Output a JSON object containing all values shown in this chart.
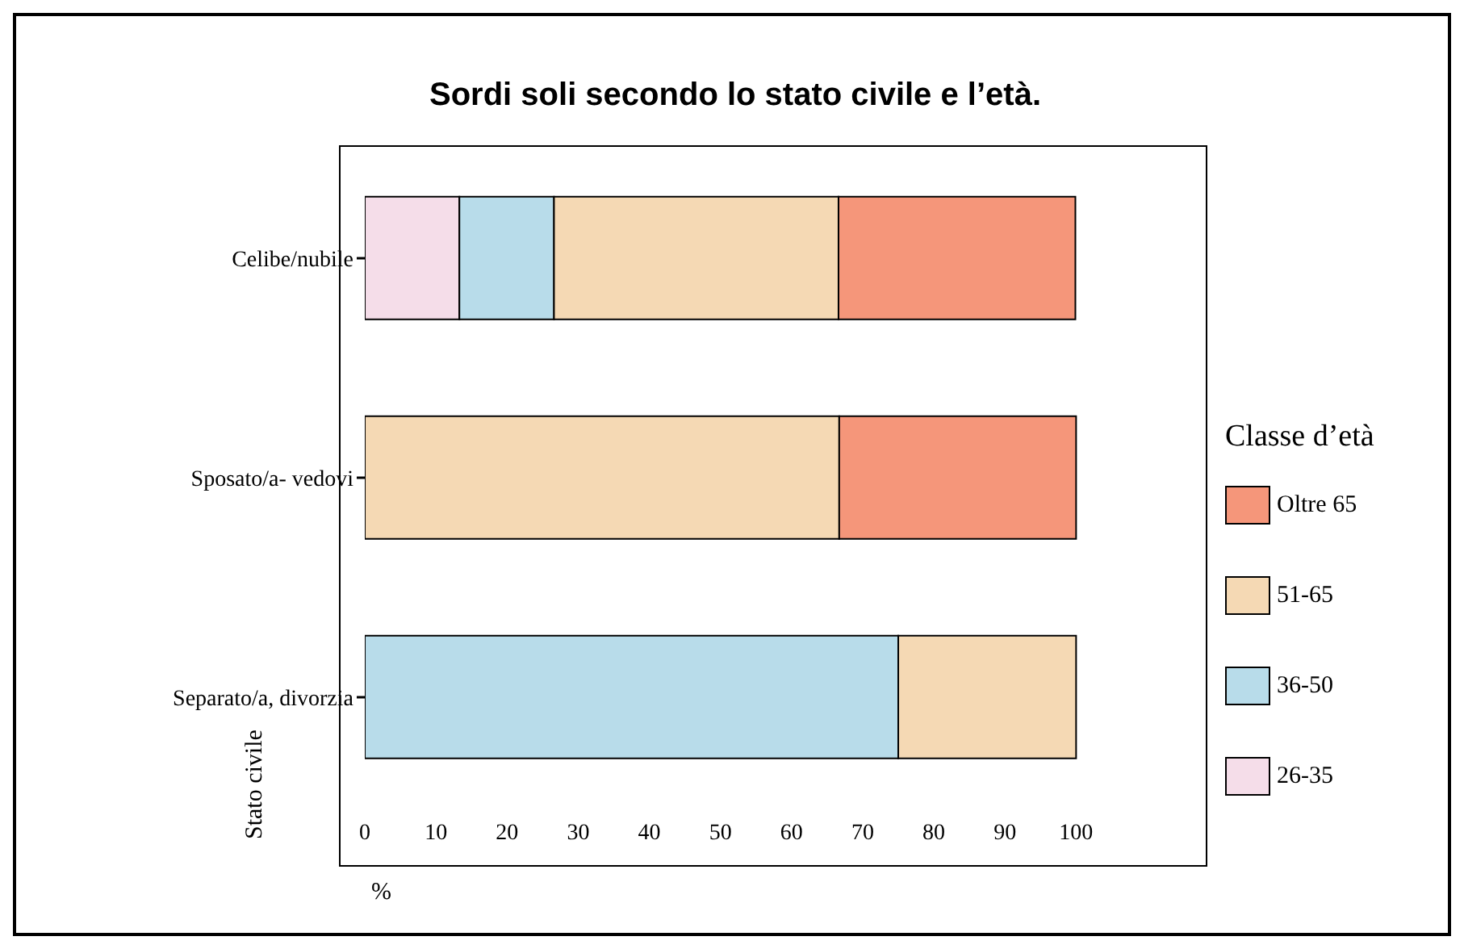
{
  "chart_data": {
    "type": "bar",
    "orientation": "horizontal",
    "stacked": true,
    "title": "Sordi soli secondo lo stato civile e l’età.",
    "xlabel": "%",
    "ylabel": "Stato civile",
    "legend_title": "Classe d’età",
    "legend": "right",
    "grid": false,
    "categories": [
      "Celibe/nubile",
      "Sposato/a- vedovi",
      "Separato/a, divorzia"
    ],
    "xlim": [
      0,
      118
    ],
    "xticks": [
      0,
      10,
      20,
      30,
      40,
      50,
      60,
      70,
      80,
      90,
      100
    ],
    "series": [
      {
        "name": "26-35",
        "color": "#f5dde9",
        "values": [
          13.3,
          0,
          0
        ]
      },
      {
        "name": "36-50",
        "color": "#b8dcea",
        "values": [
          13.3,
          0,
          75
        ]
      },
      {
        "name": "51-65",
        "color": "#f5d9b4",
        "values": [
          40,
          66.7,
          25
        ]
      },
      {
        "name": "Oltre 65",
        "color": "#f5967a",
        "values": [
          33.3,
          33.3,
          0
        ]
      }
    ]
  }
}
